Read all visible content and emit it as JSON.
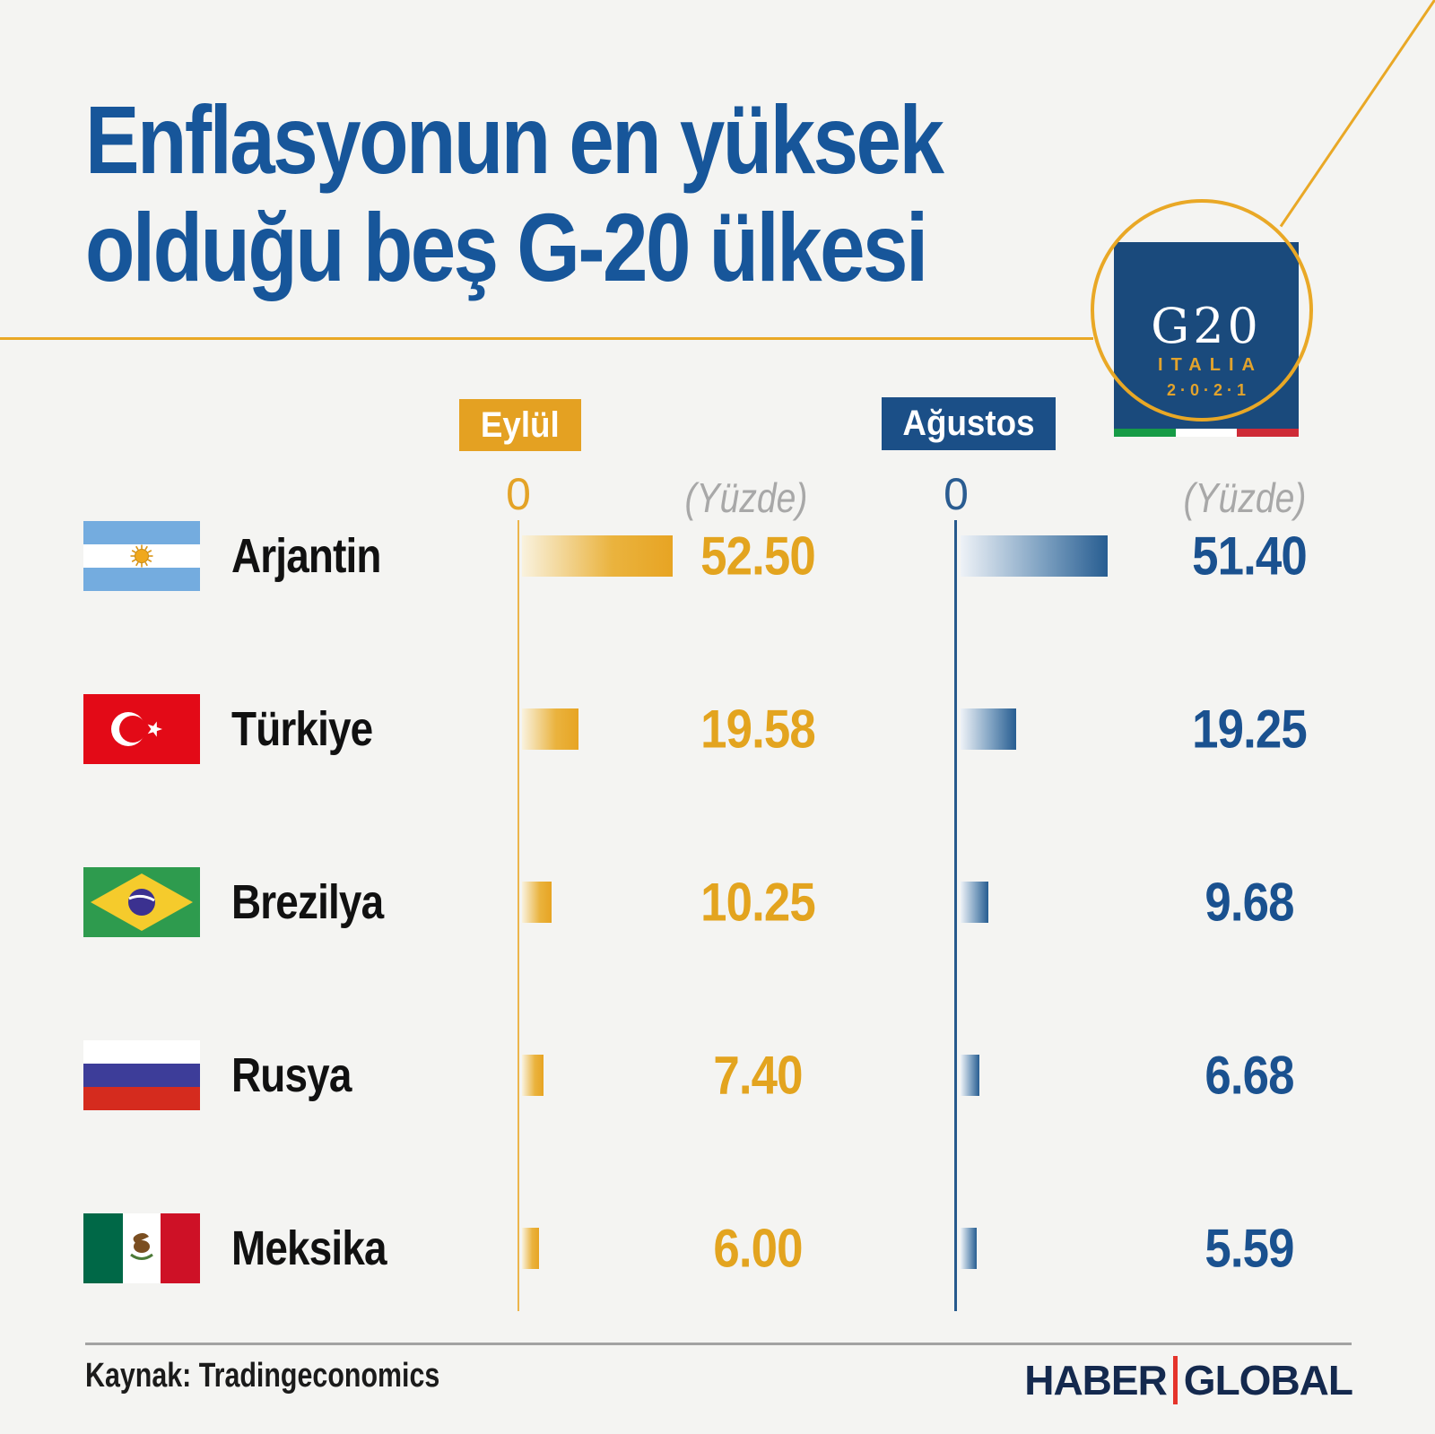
{
  "background": "#F4F4F2",
  "accent": {
    "gold": "#E6A51F",
    "blue": "#1B4F87",
    "title_blue": "#17569A",
    "gray": "#A8A8A8"
  },
  "title": {
    "line1": "Enflasyonun en yüksek",
    "line2": "olduğu beş G-20 ülkesi"
  },
  "g20_logo": {
    "name": "G20",
    "country": "ITALIA",
    "year": "2·0·2·1"
  },
  "columns": [
    {
      "label": "Eylül",
      "zero": "0",
      "unit": "(Yüzde)"
    },
    {
      "label": "Ağustos",
      "zero": "0",
      "unit": "(Yüzde)"
    }
  ],
  "chart_data": {
    "type": "bar",
    "orientation": "horizontal",
    "title": "Enflasyonun en yüksek olduğu beş G-20 ülkesi",
    "unit": "Yüzde",
    "value_decimals": 2,
    "axis_zero_label": "0",
    "categories": [
      "Arjantin",
      "Türkiye",
      "Brezilya",
      "Rusya",
      "Meksika"
    ],
    "flags": [
      "argentina",
      "turkey",
      "brazil",
      "russia",
      "mexico"
    ],
    "series": [
      {
        "name": "Eylül",
        "color": "#E6A51F",
        "values": [
          52.5,
          19.58,
          10.25,
          7.4,
          6.0
        ]
      },
      {
        "name": "Ağustos",
        "color": "#1B4F87",
        "values": [
          51.4,
          19.25,
          9.68,
          6.68,
          5.59
        ]
      }
    ]
  },
  "footer": {
    "source": "Kaynak: Tradingeconomics",
    "brand": {
      "left": "HABER",
      "right": "GLOBAL"
    }
  }
}
